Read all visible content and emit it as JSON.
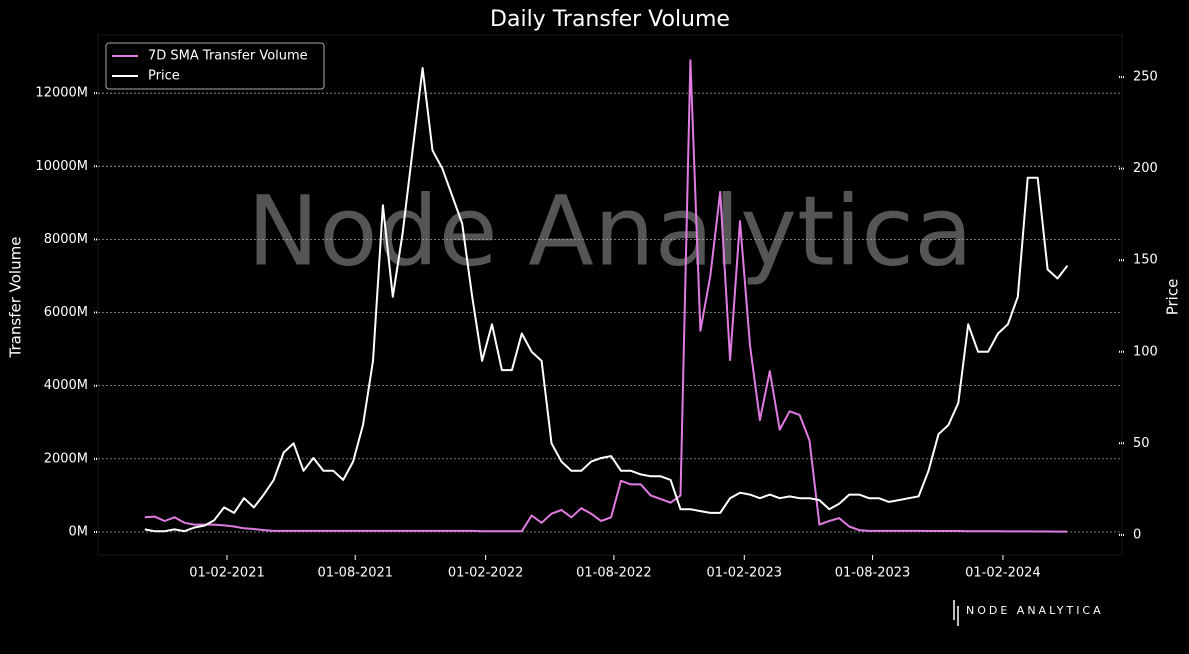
{
  "chart_data": {
    "type": "line",
    "title": "Daily Transfer Volume",
    "watermark": "Node Analytica",
    "brand": "NODE ANALYTICA",
    "ylabel": "Transfer Volume",
    "y2label": "Price",
    "legend": "upper left",
    "grid": true,
    "x": [
      "2020-10-08",
      "2020-10-22",
      "2020-11-05",
      "2020-11-19",
      "2020-12-03",
      "2020-12-17",
      "2020-12-31",
      "2021-01-14",
      "2021-01-28",
      "2021-02-11",
      "2021-02-25",
      "2021-03-11",
      "2021-03-25",
      "2021-04-08",
      "2021-04-22",
      "2021-05-06",
      "2021-05-20",
      "2021-06-03",
      "2021-06-17",
      "2021-07-01",
      "2021-07-15",
      "2021-07-29",
      "2021-08-12",
      "2021-08-26",
      "2021-09-09",
      "2021-09-23",
      "2021-10-07",
      "2021-10-21",
      "2021-11-04",
      "2021-11-18",
      "2021-12-02",
      "2021-12-16",
      "2021-12-30",
      "2022-01-13",
      "2022-01-27",
      "2022-02-10",
      "2022-02-24",
      "2022-03-10",
      "2022-03-24",
      "2022-04-07",
      "2022-04-21",
      "2022-05-05",
      "2022-05-19",
      "2022-06-02",
      "2022-06-16",
      "2022-06-30",
      "2022-07-14",
      "2022-07-28",
      "2022-08-11",
      "2022-08-25",
      "2022-09-08",
      "2022-09-22",
      "2022-10-06",
      "2022-10-20",
      "2022-11-03",
      "2022-11-17",
      "2022-12-01",
      "2022-12-15",
      "2022-12-29",
      "2023-01-12",
      "2023-01-26",
      "2023-02-09",
      "2023-02-23",
      "2023-03-09",
      "2023-03-23",
      "2023-04-06",
      "2023-04-20",
      "2023-05-04",
      "2023-05-18",
      "2023-06-01",
      "2023-06-15",
      "2023-06-29",
      "2023-07-13",
      "2023-07-27",
      "2023-08-10",
      "2023-08-24",
      "2023-09-07",
      "2023-09-21",
      "2023-10-05",
      "2023-10-19",
      "2023-11-02",
      "2023-11-16",
      "2023-11-30",
      "2023-12-14",
      "2023-12-28",
      "2024-01-11",
      "2024-01-25",
      "2024-02-08",
      "2024-02-22",
      "2024-03-07",
      "2024-03-21",
      "2024-04-04",
      "2024-04-18",
      "2024-05-02"
    ],
    "xlim": [
      "2020-08-03",
      "2024-07-18"
    ],
    "xticks": [
      {
        "value": "2021-02-01",
        "label": "01-02-2021"
      },
      {
        "value": "2021-08-01",
        "label": "01-08-2021"
      },
      {
        "value": "2022-02-01",
        "label": "01-02-2022"
      },
      {
        "value": "2022-08-01",
        "label": "01-08-2022"
      },
      {
        "value": "2023-02-01",
        "label": "01-02-2023"
      },
      {
        "value": "2023-08-01",
        "label": "01-08-2023"
      },
      {
        "value": "2024-02-01",
        "label": "01-02-2024"
      }
    ],
    "ylim": [
      -630,
      13590
    ],
    "yticks": [
      {
        "value": 0,
        "label": "0M"
      },
      {
        "value": 2000,
        "label": "2000M"
      },
      {
        "value": 4000,
        "label": "4000M"
      },
      {
        "value": 6000,
        "label": "6000M"
      },
      {
        "value": 8000,
        "label": "8000M"
      },
      {
        "value": 10000,
        "label": "10000M"
      },
      {
        "value": 12000,
        "label": "12000M"
      }
    ],
    "y2lim": [
      -11,
      273
    ],
    "y2ticks": [
      0,
      50,
      100,
      150,
      200,
      250
    ],
    "series": [
      {
        "name": "7D SMA Transfer Volume",
        "color": "#e07be0",
        "axis": "y",
        "values": [
          400,
          420,
          300,
          400,
          250,
          200,
          200,
          200,
          180,
          150,
          100,
          80,
          50,
          30,
          30,
          30,
          30,
          30,
          30,
          30,
          30,
          30,
          30,
          30,
          30,
          30,
          30,
          30,
          30,
          30,
          30,
          30,
          30,
          30,
          20,
          20,
          20,
          20,
          20,
          450,
          250,
          500,
          600,
          400,
          650,
          500,
          300,
          400,
          1400,
          1300,
          1300,
          1000,
          900,
          800,
          1000,
          12900,
          5500,
          7000,
          9300,
          4700,
          8500,
          5100,
          3060,
          4400,
          2800,
          3300,
          3200,
          2500,
          200,
          300,
          380,
          150,
          50,
          30,
          30,
          30,
          30,
          30,
          30,
          25,
          25,
          25,
          25,
          20,
          20,
          20,
          20,
          15,
          15,
          15,
          12,
          12,
          10,
          10
        ]
      },
      {
        "name": "Price",
        "color": "#ffffff",
        "axis": "y2",
        "values": [
          3,
          2,
          2,
          3,
          2,
          4,
          5,
          8,
          15,
          12,
          20,
          15,
          22,
          30,
          45,
          50,
          35,
          42,
          35,
          35,
          30,
          40,
          60,
          95,
          180,
          130,
          165,
          210,
          255,
          210,
          200,
          185,
          170,
          130,
          95,
          115,
          90,
          90,
          110,
          100,
          95,
          50,
          40,
          35,
          35,
          40,
          42,
          43,
          35,
          35,
          33,
          32,
          32,
          30,
          14,
          14,
          13,
          12,
          12,
          20,
          23,
          22,
          20,
          22,
          20,
          21,
          20,
          20,
          19,
          14,
          17,
          22,
          22,
          20,
          20,
          18,
          19,
          20,
          21,
          35,
          55,
          60,
          72,
          115,
          100,
          100,
          110,
          115,
          130,
          195,
          195,
          145,
          140,
          147
        ]
      }
    ]
  }
}
